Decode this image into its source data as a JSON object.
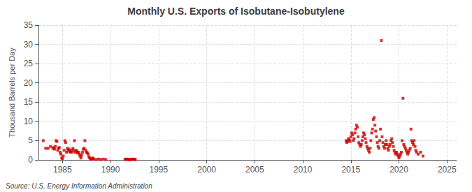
{
  "chart_data": {
    "type": "scatter",
    "title": "Monthly U.S. Exports of Isobutane-Isobutylene",
    "ylabel": "Thousand Barrels per Day",
    "annotations": [
      "Source: U.S. Energy Information Administration"
    ],
    "color": "#cc0000",
    "marker": "square",
    "grid": true,
    "xlim": [
      1982.5,
      2026
    ],
    "ylim": [
      0,
      35
    ],
    "xticks": [
      1985,
      1990,
      1995,
      2000,
      2005,
      2010,
      2015,
      2020,
      2025
    ],
    "yticks": [
      0,
      5,
      10,
      15,
      20,
      25,
      30,
      35
    ],
    "x": [
      1983.0,
      1983.25,
      1983.5,
      1983.75,
      1984.0,
      1984.08,
      1984.17,
      1984.25,
      1984.33,
      1984.42,
      1984.5,
      1984.58,
      1984.67,
      1984.75,
      1984.83,
      1984.92,
      1985.0,
      1985.08,
      1985.17,
      1985.25,
      1985.33,
      1985.42,
      1985.5,
      1985.58,
      1985.67,
      1985.75,
      1985.83,
      1985.92,
      1986.0,
      1986.08,
      1986.17,
      1986.25,
      1986.33,
      1986.42,
      1986.5,
      1986.58,
      1986.67,
      1986.75,
      1986.83,
      1986.92,
      1987.0,
      1987.08,
      1987.17,
      1987.25,
      1987.33,
      1987.42,
      1987.5,
      1987.58,
      1987.67,
      1987.75,
      1987.83,
      1987.92,
      1988.0,
      1988.08,
      1988.17,
      1988.25,
      1988.5,
      1988.75,
      1989.0,
      1989.25,
      1989.5,
      1991.5,
      1991.58,
      1991.67,
      1991.75,
      1991.83,
      1991.92,
      1992.0,
      1992.08,
      1992.17,
      1992.25,
      1992.33,
      1992.42,
      1992.5,
      1992.58,
      2014.5,
      2014.58,
      2014.67,
      2014.75,
      2014.83,
      2014.92,
      2015.0,
      2015.08,
      2015.17,
      2015.25,
      2015.33,
      2015.42,
      2015.5,
      2015.58,
      2015.67,
      2015.75,
      2015.83,
      2015.92,
      2016.0,
      2016.08,
      2016.17,
      2016.25,
      2016.33,
      2016.42,
      2016.5,
      2016.58,
      2016.67,
      2016.75,
      2016.83,
      2016.92,
      2017.0,
      2017.08,
      2017.17,
      2017.25,
      2017.33,
      2017.42,
      2017.5,
      2017.58,
      2017.67,
      2017.75,
      2017.83,
      2017.92,
      2018.0,
      2018.08,
      2018.17,
      2018.25,
      2018.33,
      2018.42,
      2018.5,
      2018.58,
      2018.67,
      2018.75,
      2018.83,
      2018.92,
      2019.0,
      2019.08,
      2019.17,
      2019.25,
      2019.33,
      2019.42,
      2019.5,
      2019.58,
      2019.67,
      2019.75,
      2019.83,
      2019.92,
      2020.0,
      2020.08,
      2020.17,
      2020.25,
      2020.33,
      2020.42,
      2020.5,
      2020.58,
      2020.67,
      2020.75,
      2020.83,
      2020.92,
      2021.0,
      2021.08,
      2021.17,
      2021.25,
      2021.33,
      2021.42,
      2021.5,
      2021.58,
      2021.67,
      2021.75,
      2021.83,
      2022.0,
      2022.25,
      2022.5
    ],
    "values": [
      5.0,
      3.0,
      3.0,
      3.5,
      3.0,
      3.2,
      2.8,
      3.5,
      5.0,
      4.8,
      2.5,
      3.0,
      3.2,
      2.0,
      1.5,
      0.5,
      0.3,
      1.0,
      2.5,
      5.0,
      4.5,
      2.0,
      3.0,
      2.5,
      2.8,
      2.2,
      2.0,
      2.5,
      2.0,
      3.0,
      2.5,
      5.0,
      2.0,
      2.5,
      2.2,
      1.8,
      2.0,
      1.5,
      1.0,
      0.5,
      1.2,
      2.0,
      2.8,
      3.0,
      5.0,
      2.5,
      2.0,
      1.8,
      1.5,
      0.8,
      0.5,
      0.2,
      0.1,
      0.3,
      0.5,
      0.2,
      0.1,
      0.2,
      0.1,
      0.2,
      0.1,
      0.1,
      0.15,
      0.2,
      0.15,
      0.1,
      0.1,
      0.1,
      0.1,
      0.1,
      0.2,
      0.2,
      0.15,
      0.1,
      0.1,
      5.0,
      4.5,
      4.8,
      5.5,
      5.2,
      4.8,
      6.0,
      7.0,
      6.5,
      5.0,
      5.5,
      7.0,
      8.0,
      9.0,
      8.5,
      6.0,
      4.5,
      4.0,
      3.5,
      4.0,
      5.0,
      6.0,
      7.0,
      6.5,
      5.5,
      4.5,
      3.5,
      3.0,
      2.5,
      2.0,
      3.0,
      5.0,
      7.0,
      8.0,
      10.5,
      11.0,
      9.0,
      7.5,
      6.0,
      4.5,
      3.5,
      3.0,
      5.0,
      8.0,
      31.0,
      6.0,
      4.5,
      3.5,
      3.0,
      4.0,
      5.0,
      4.0,
      3.0,
      2.5,
      3.5,
      4.0,
      5.0,
      5.5,
      4.5,
      3.5,
      2.5,
      2.0,
      1.5,
      2.0,
      1.5,
      1.0,
      0.5,
      1.0,
      1.5,
      2.0,
      5.0,
      16.0,
      4.0,
      3.5,
      3.0,
      2.5,
      2.0,
      1.5,
      2.0,
      2.5,
      3.0,
      8.0,
      5.0,
      4.5,
      4.0,
      5.0,
      3.5,
      2.5,
      2.0,
      1.5,
      2.0,
      1.0
    ]
  }
}
